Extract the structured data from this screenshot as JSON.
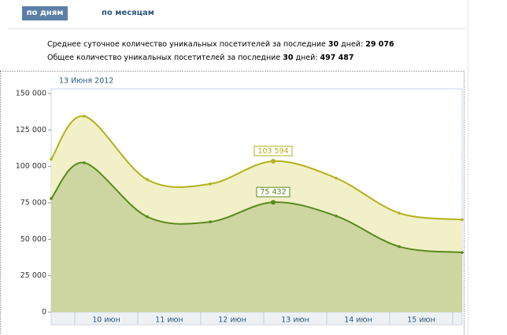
{
  "tabs": [
    "по дням",
    "по месяцам"
  ],
  "summary": [
    {
      "text": "Среднее суточное количество уникальных посетителей за последние",
      "days": "30",
      "unit": "дней:",
      "value": "29 076"
    },
    {
      "text": "Общее количество уникальных посетителей за последние",
      "days": "30",
      "unit": "дней:",
      "value": "497 487"
    }
  ],
  "chart_data": {
    "type": "area",
    "tooltip": "13 Июня 2012",
    "x": [
      -0.375,
      0.15,
      1.15,
      2.15,
      3.15,
      4.15,
      5.15,
      6.15
    ],
    "xlim": [
      -0.375,
      6.15
    ],
    "xticks": [
      {
        "value": 0.5,
        "label": "10 июн"
      },
      {
        "value": 1.5,
        "label": "11 июн"
      },
      {
        "value": 2.5,
        "label": "12 июн"
      },
      {
        "value": 3.5,
        "label": "13 июн"
      },
      {
        "value": 4.5,
        "label": "14 июн"
      },
      {
        "value": 5.5,
        "label": "15 июн"
      }
    ],
    "ylim": [
      0,
      150000
    ],
    "yticks": [
      0,
      {
        "value": 25000,
        "label": "25 000"
      },
      {
        "value": 50000,
        "label": "50 000"
      },
      {
        "value": 75000,
        "label": "75 000"
      },
      {
        "value": 100000,
        "label": "100 000"
      },
      {
        "value": 125000,
        "label": "125 000"
      },
      {
        "value": 150000,
        "label": "150 000"
      }
    ],
    "series": [
      {
        "color": "#b3b11c",
        "fill": "#f1f0c8",
        "values": [
          105000,
          134500,
          91000,
          88000,
          103594,
          92000,
          68000,
          63500
        ],
        "value_labels": [
          null,
          null,
          null,
          null,
          "103 594",
          null,
          null,
          null
        ]
      },
      {
        "color": "#5a8a1e",
        "fill": "#cdd6a1",
        "values": [
          78000,
          102500,
          65500,
          62000,
          75432,
          66000,
          45000,
          41000
        ],
        "value_labels": [
          null,
          null,
          null,
          null,
          "75 432",
          null,
          null,
          null
        ]
      }
    ]
  }
}
